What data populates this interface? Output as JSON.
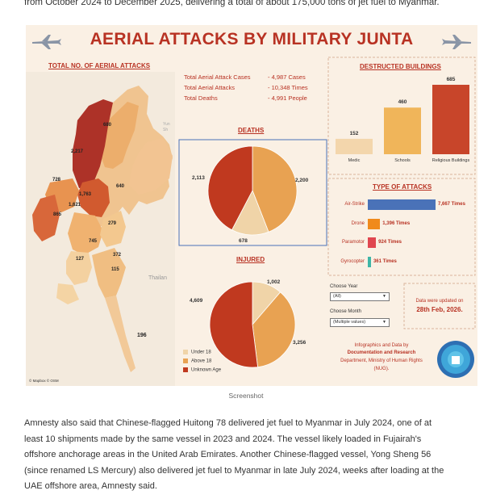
{
  "article_top": "from October 2024 to December 2025, delivering a total of about 175,000 tons of jet fuel to Myanmar.",
  "infographic": {
    "title": "AERIAL ATTACKS BY MILITARY JUNTA",
    "total_section_title": "TOTAL NO. OF AERIAL ATTACKS",
    "stats": [
      {
        "label": "Total Aerial Attack Cases",
        "value": "4,987",
        "unit": "Cases"
      },
      {
        "label": "Total Aerial Attacks",
        "value": "10,348",
        "unit": "Times"
      },
      {
        "label": "Total Deaths",
        "value": "4,991",
        "unit": "People"
      }
    ],
    "map_labels": [
      "680",
      "2,217",
      "640",
      "728",
      "1,763",
      "1,621",
      "865",
      "279",
      "745",
      "127",
      "372",
      "115",
      "196",
      "Thailan",
      "Yun",
      "Sh"
    ],
    "map_credit": "© Mapbox © OSM",
    "deaths_title": "DEATHS",
    "injured_title": "INJURED",
    "buildings_title": "DESTRUCTED BUILDINGS",
    "attacks_title": "TYPE OF ATTACKS",
    "choose_year_label": "Choose Year",
    "choose_year_value": "(All)",
    "choose_month_label": "Choose Month",
    "choose_month_value": "(Multiple values)",
    "updated_line1": "Data were updated on",
    "updated_line2": "28th Feb, 2026.",
    "credit_line1": "Infographics and Data by",
    "credit_line2": "Documentation and Research",
    "credit_line3": "Department, Ministry of Human Rights",
    "credit_line4": "(NUG).",
    "legend": [
      "Under 18",
      "Above 18",
      "Unknown Age"
    ],
    "colors": {
      "under18": "#f0d4a8",
      "above18": "#e8a252",
      "unknown": "#c0391f",
      "accent": "#b83223"
    }
  },
  "chart_data": [
    {
      "type": "pie",
      "title": "DEATHS",
      "labels": [
        "Above 18",
        "Under 18",
        "Unknown Age"
      ],
      "values": [
        2200,
        678,
        2113
      ],
      "value_labels": [
        "2,200",
        "678",
        "2,113"
      ]
    },
    {
      "type": "pie",
      "title": "INJURED",
      "labels": [
        "Under 18",
        "Above 18",
        "Unknown Age"
      ],
      "values": [
        1002,
        3256,
        4609
      ],
      "value_labels": [
        "1,002",
        "3,256",
        "4,609"
      ]
    },
    {
      "type": "bar",
      "title": "DESTRUCTED BUILDINGS",
      "categories": [
        "Medic",
        "Schools",
        "Religious Buildings"
      ],
      "values": [
        152,
        460,
        685
      ]
    },
    {
      "type": "bar",
      "title": "TYPE OF ATTACKS",
      "orientation": "horizontal",
      "categories": [
        "Air-Strike",
        "Drone",
        "Paramotor",
        "Gyrocopter"
      ],
      "values": [
        7667,
        1396,
        924,
        361
      ],
      "value_labels": [
        "7,667 Times",
        "1,396 Times",
        "924 Times",
        "361 Times"
      ],
      "colors": [
        "#4a72b8",
        "#f08a1c",
        "#e04650",
        "#3fb5a6"
      ]
    }
  ],
  "caption": "Screenshot",
  "article_lines": [
    "Amnesty also said that Chinese-flagged Huitong 78 delivered jet fuel to Myanmar in July 2024, one of at",
    "least 10 shipments made by the same vessel in 2023 and 2024. The vessel likely loaded in Fujairah's",
    "offshore anchorage areas in the United Arab Emirates. Another Chinese-flagged vessel, Yong Sheng 56",
    "(since renamed LS Mercury) also delivered jet fuel to Myanmar in late July 2024, weeks after loading at the",
    "UAE offshore area, Amnesty said."
  ]
}
